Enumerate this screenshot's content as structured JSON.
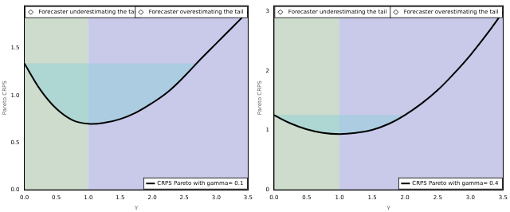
{
  "chart_data": [
    {
      "type": "line",
      "xlabel": "γ",
      "ylabel": "Pareto CRPS",
      "x": [
        0,
        0.25,
        0.5,
        0.75,
        1,
        1.25,
        1.5,
        1.75,
        2,
        2.25,
        2.5,
        2.75,
        3,
        3.25,
        3.5
      ],
      "series": [
        {
          "name": "CRPS Pareto with gamma= 0.1",
          "color": "#000000",
          "values": [
            1.34,
            1.06,
            0.86,
            0.74,
            0.7,
            0.71,
            0.75,
            0.82,
            0.92,
            1.04,
            1.2,
            1.38,
            1.55,
            1.72,
            1.89
          ]
        }
      ],
      "xlim": [
        0,
        3.5
      ],
      "xticks": [
        {
          "value": 0,
          "label": "0.0"
        },
        0.5,
        {
          "value": 1,
          "label": "1.0"
        },
        1.5,
        {
          "value": 2,
          "label": "2.0"
        },
        2.5,
        {
          "value": 3,
          "label": "3.0"
        },
        3.5
      ],
      "ylim": [
        0,
        1.95
      ],
      "yticks": [
        {
          "value": 0,
          "label": "0.0"
        },
        0.5,
        {
          "value": 1,
          "label": "1.0"
        },
        1.5
      ],
      "grid": false,
      "legend": "bottom right",
      "regions": [
        {
          "name": "Forecaster underestimating the tail",
          "color": "#cddccd",
          "xlim": [
            0,
            1
          ]
        },
        {
          "name": "Forecaster overestimating the tail",
          "color": "#c9c9ea",
          "xlim": [
            1,
            3.5
          ]
        }
      ],
      "band": {
        "level": 1.34,
        "xlim": [
          0,
          2.69
        ],
        "color": "#8fd0d8"
      }
    },
    {
      "type": "line",
      "xlabel": "γ",
      "ylabel": "Pareto CRPS",
      "x": [
        0,
        0.25,
        0.5,
        0.75,
        1,
        1.25,
        1.5,
        1.75,
        2,
        2.25,
        2.5,
        2.75,
        3,
        3.25,
        3.5
      ],
      "series": [
        {
          "name": "CRPS Pareto with gamma= 0.4",
          "color": "#000000",
          "values": [
            1.26,
            1.12,
            1.02,
            0.96,
            0.94,
            0.96,
            1.01,
            1.11,
            1.26,
            1.45,
            1.68,
            1.96,
            2.27,
            2.62,
            3.0
          ]
        }
      ],
      "xlim": [
        0,
        3.5
      ],
      "xticks": [
        {
          "value": 0,
          "label": "0.0"
        },
        0.5,
        {
          "value": 1,
          "label": "1.0"
        },
        1.5,
        {
          "value": 2,
          "label": "2.0"
        },
        2.5,
        {
          "value": 3,
          "label": "3.0"
        },
        3.5
      ],
      "ylim": [
        0,
        3.1
      ],
      "yticks": [
        0,
        1,
        2,
        3
      ],
      "grid": false,
      "legend": "bottom right",
      "regions": [
        {
          "name": "Forecaster underestimating the tail",
          "color": "#cddccd",
          "xlim": [
            0,
            1
          ]
        },
        {
          "name": "Forecaster overestimating the tail",
          "color": "#c9c9ea",
          "xlim": [
            1,
            3.5
          ]
        }
      ],
      "band": {
        "level": 1.26,
        "xlim": [
          0,
          2.0
        ],
        "color": "#8fd0d8"
      }
    }
  ]
}
